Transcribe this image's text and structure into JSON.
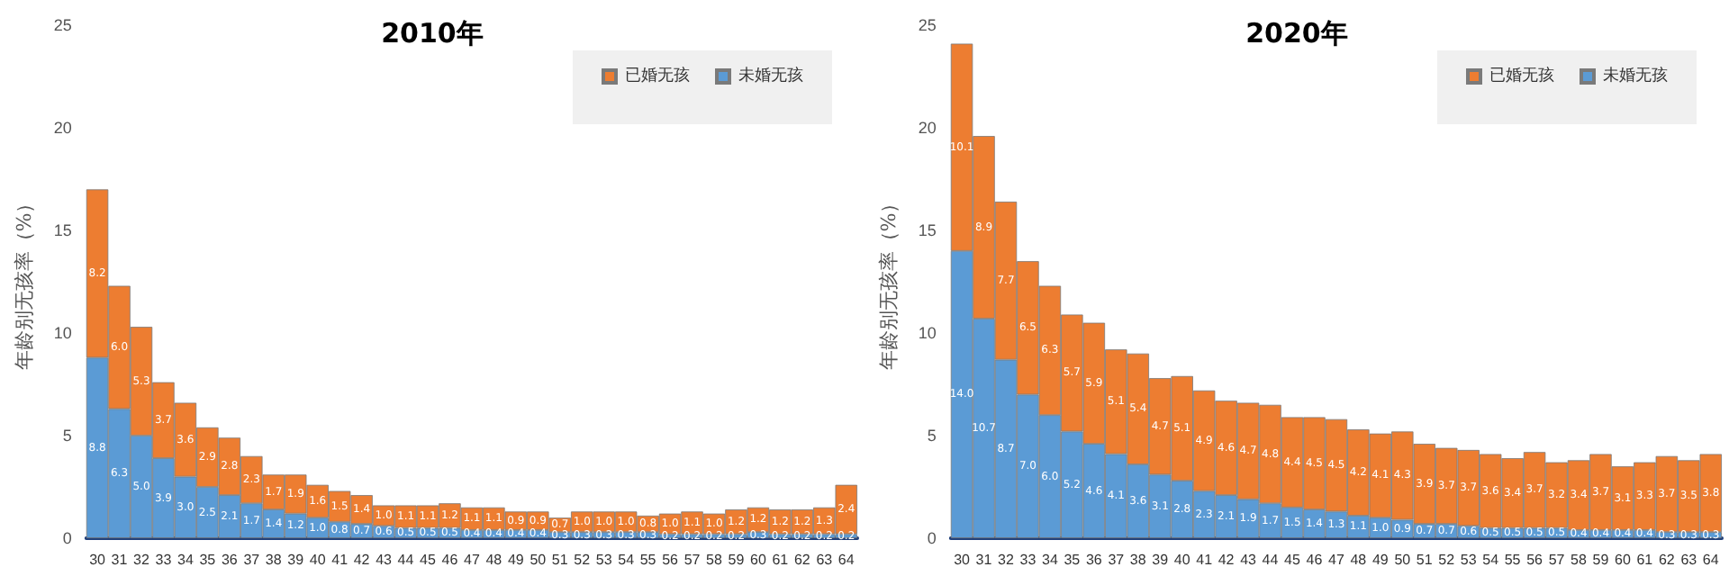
{
  "chart_data": [
    {
      "type": "bar",
      "title": "2010年",
      "ylabel": "年龄别无孩率（%）",
      "categories": [
        "30",
        "31",
        "32",
        "33",
        "34",
        "35",
        "36",
        "37",
        "38",
        "39",
        "40",
        "41",
        "42",
        "43",
        "44",
        "45",
        "46",
        "47",
        "48",
        "49",
        "50",
        "51",
        "52",
        "53",
        "54",
        "55",
        "56",
        "57",
        "58",
        "59",
        "60",
        "61",
        "62",
        "63",
        "64"
      ],
      "stacked": true,
      "ylim": [
        0,
        25
      ],
      "yticks": [
        0,
        5,
        10,
        15,
        20,
        25
      ],
      "grid": false,
      "legend": "top right",
      "series": [
        {
          "name": "未婚无孩",
          "color": "#5b9bd5",
          "values": [
            8.8,
            6.3,
            5.0,
            3.9,
            3.0,
            2.5,
            2.1,
            1.7,
            1.4,
            1.2,
            1.0,
            0.8,
            0.7,
            0.6,
            0.5,
            0.5,
            0.5,
            0.4,
            0.4,
            0.4,
            0.4,
            0.3,
            0.3,
            0.3,
            0.3,
            0.3,
            0.2,
            0.2,
            0.2,
            0.2,
            0.3,
            0.2,
            0.2,
            0.2,
            0.2
          ],
          "value_labels": [
            "8.8",
            "6.3",
            "5.0",
            "3.9",
            "3.0",
            "2.5",
            "2.1",
            "1.7",
            "1.4",
            "1.2",
            "1.0",
            "0.8",
            "0.7",
            "0.6",
            "0.5",
            "0.5",
            "0.5",
            "0.4",
            "0.4",
            "0.4",
            "0.4",
            "0.3",
            "0.3",
            "0.3",
            "0.3",
            "0.3",
            "0.2",
            "0.2",
            "0.2",
            "0.2",
            "0.3",
            "0.2",
            "0.2",
            "0.2",
            "0.2"
          ]
        },
        {
          "name": "已婚无孩",
          "color": "#ed7d31",
          "values": [
            8.2,
            6.0,
            5.3,
            3.7,
            3.6,
            2.9,
            2.8,
            2.3,
            1.7,
            1.9,
            1.6,
            1.5,
            1.4,
            1.0,
            1.1,
            1.1,
            1.2,
            1.1,
            1.1,
            0.9,
            0.9,
            0.7,
            1.0,
            1.0,
            1.0,
            0.8,
            1.0,
            1.1,
            1.0,
            1.2,
            1.2,
            1.2,
            1.2,
            1.3,
            2.4
          ],
          "value_labels": [
            "8.2",
            "6.0",
            "5.3",
            "3.7",
            "3.6",
            "2.9",
            "2.8",
            "2.3",
            "1.7",
            "1.9",
            "1.6",
            "1.5",
            "1.4",
            "1.0",
            "1.1",
            "1.1",
            "1.2",
            "1.1",
            "1.1",
            "0.9",
            "0.9",
            "0.7",
            "1.0",
            "1.0",
            "1.0",
            "0.8",
            "1.0",
            "1.1",
            "1.0",
            "1.2",
            "1.2",
            "1.2",
            "1.2",
            "1.3",
            "2.4"
          ]
        }
      ]
    },
    {
      "type": "bar",
      "title": "2020年",
      "ylabel": "年龄别无孩率（%）",
      "categories": [
        "30",
        "31",
        "32",
        "33",
        "34",
        "35",
        "36",
        "37",
        "38",
        "39",
        "40",
        "41",
        "42",
        "43",
        "44",
        "45",
        "46",
        "47",
        "48",
        "49",
        "50",
        "51",
        "52",
        "53",
        "54",
        "55",
        "56",
        "57",
        "58",
        "59",
        "60",
        "61",
        "62",
        "63",
        "64"
      ],
      "stacked": true,
      "ylim": [
        0,
        25
      ],
      "yticks": [
        0,
        5,
        10,
        15,
        20,
        25
      ],
      "grid": false,
      "legend": "top right",
      "series": [
        {
          "name": "未婚无孩",
          "color": "#5b9bd5",
          "values": [
            14.0,
            10.7,
            8.7,
            7.0,
            6.0,
            5.2,
            4.6,
            4.1,
            3.6,
            3.1,
            2.8,
            2.3,
            2.1,
            1.9,
            1.7,
            1.5,
            1.4,
            1.3,
            1.1,
            1.0,
            0.9,
            0.7,
            0.7,
            0.6,
            0.5,
            0.5,
            0.5,
            0.5,
            0.4,
            0.4,
            0.4,
            0.4,
            0.3,
            0.3,
            0.3
          ],
          "value_labels": [
            "14.0",
            "10.7",
            "8.7",
            "7.0",
            "6.0",
            "5.2",
            "4.6",
            "4.1",
            "3.6",
            "3.1",
            "2.8",
            "2.3",
            "2.1",
            "1.9",
            "1.7",
            "1.5",
            "1.4",
            "1.3",
            "1.1",
            "1.0",
            "0.9",
            "0.7",
            "0.7",
            "0.6",
            "0.5",
            "0.5",
            "0.5",
            "0.5",
            "0.4",
            "0.4",
            "0.4",
            "0.4",
            "0.3",
            "0.3",
            "0.3"
          ]
        },
        {
          "name": "已婚无孩",
          "color": "#ed7d31",
          "values": [
            10.1,
            8.9,
            7.7,
            6.5,
            6.3,
            5.7,
            5.9,
            5.1,
            5.4,
            4.7,
            5.1,
            4.9,
            4.6,
            4.7,
            4.8,
            4.4,
            4.5,
            4.5,
            4.2,
            4.1,
            4.3,
            3.9,
            3.7,
            3.7,
            3.6,
            3.4,
            3.7,
            3.2,
            3.4,
            3.7,
            3.1,
            3.3,
            3.7,
            3.5,
            3.8
          ],
          "value_labels": [
            "10.1",
            "8.9",
            "7.7",
            "6.5",
            "6.3",
            "5.7",
            "5.9",
            "5.1",
            "5.4",
            "4.7",
            "5.1",
            "4.9",
            "4.6",
            "4.7",
            "4.8",
            "4.4",
            "4.5",
            "4.5",
            "4.2",
            "4.1",
            "4.3",
            "3.9",
            "3.7",
            "3.7",
            "3.6",
            "3.4",
            "3.7",
            "3.2",
            "3.4",
            "3.7",
            "3.1",
            "3.3",
            "3.7",
            "3.5",
            "3.8"
          ]
        }
      ]
    }
  ]
}
